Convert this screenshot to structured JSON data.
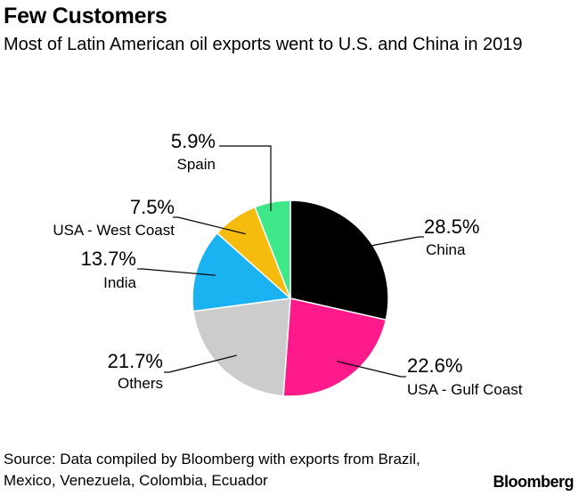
{
  "header": {
    "title": "Few Customers",
    "subtitle": "Most of Latin American oil exports went to U.S. and China in 2019"
  },
  "footer": {
    "source": "Source: Data compiled by Bloomberg with exports from Brazil, Mexico, Venezuela, Colombia, Ecuador",
    "brand": "Bloomberg"
  },
  "chart_data": {
    "type": "pie",
    "title": "Few Customers",
    "subtitle": "Most of Latin American oil exports went to U.S. and China in 2019",
    "unit": "%",
    "slices": [
      {
        "label": "China",
        "value": 28.5,
        "value_label": "28.5%",
        "color": "#000000"
      },
      {
        "label": "USA - Gulf Coast",
        "value": 22.6,
        "value_label": "22.6%",
        "color": "#ff1a8c"
      },
      {
        "label": "Others",
        "value": 21.7,
        "value_label": "21.7%",
        "color": "#cccccc"
      },
      {
        "label": "India",
        "value": 13.7,
        "value_label": "13.7%",
        "color": "#1ab2f0"
      },
      {
        "label": "USA - West Coast",
        "value": 7.5,
        "value_label": "7.5%",
        "color": "#f5bb0f"
      },
      {
        "label": "Spain",
        "value": 5.9,
        "value_label": "5.9%",
        "color": "#3ee888"
      }
    ]
  }
}
